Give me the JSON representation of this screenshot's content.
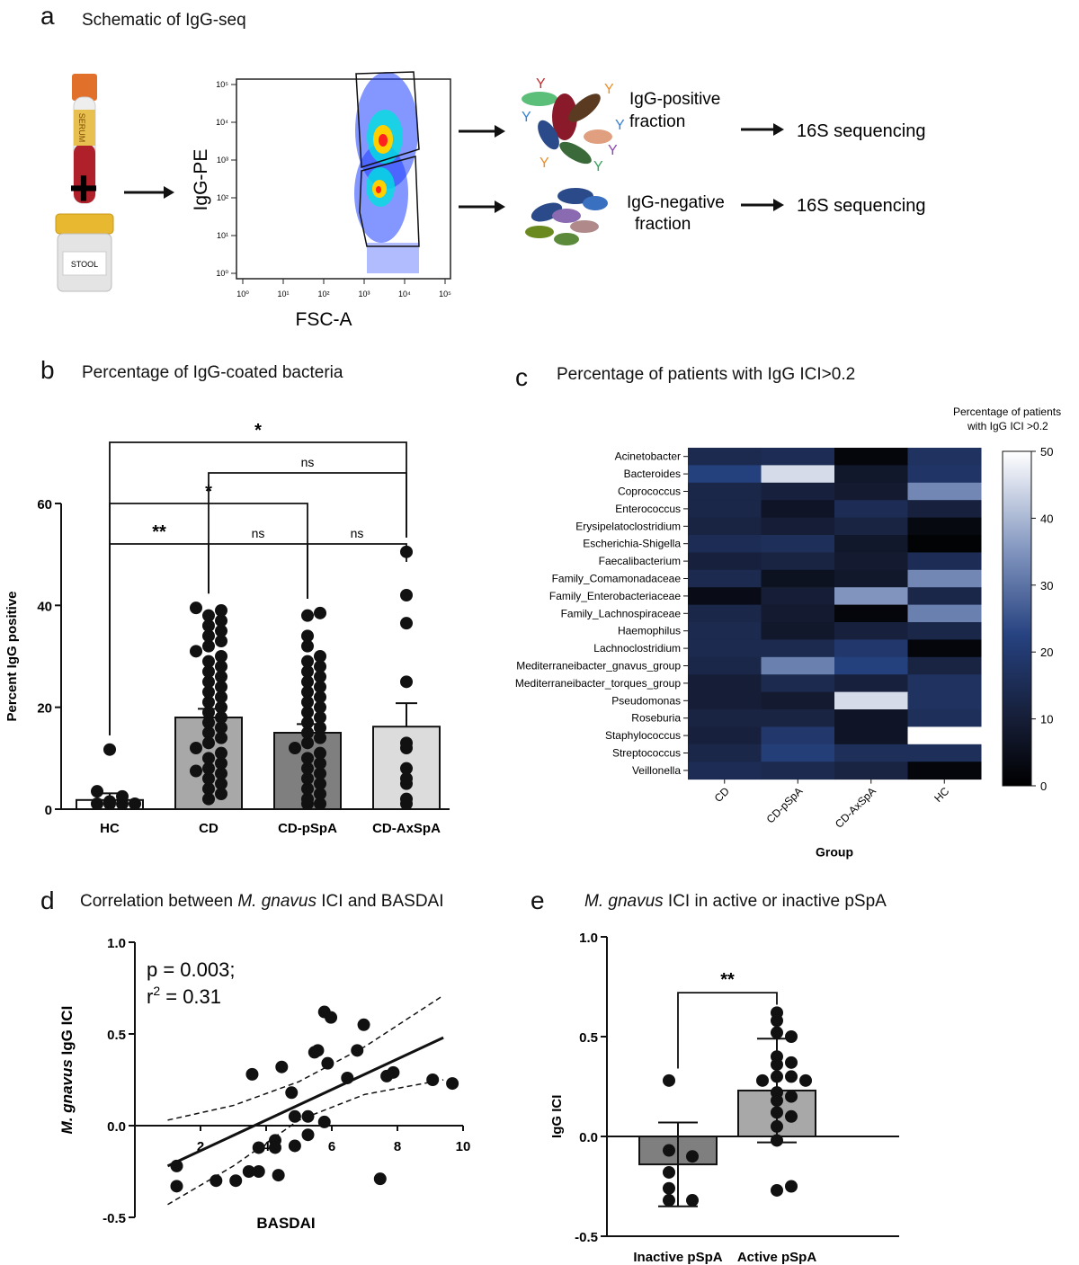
{
  "panels": {
    "a": {
      "letter": "a",
      "title": "Schematic of IgG-seq"
    },
    "b": {
      "letter": "b",
      "title": "Percentage of IgG-coated bacteria"
    },
    "c": {
      "letter": "c",
      "title": "Percentage of patients with IgG ICI>0.2"
    },
    "d": {
      "letter": "d",
      "title_pre": "Correlation between ",
      "title_it": "M. gnavus",
      "title_post": " ICI and BASDAI"
    },
    "e": {
      "letter": "e",
      "title_it": "M. gnavus",
      "title_post": " ICI in active or inactive pSpA"
    }
  },
  "schematic": {
    "serum_label": "SERUM",
    "stool_label": "STOOL",
    "plus": "+",
    "flow_ylabel": "IgG-PE",
    "flow_xlabel": "FSC-A",
    "x_ticks": [
      "10⁰",
      "10¹",
      "10²",
      "10³",
      "10⁴",
      "10⁵"
    ],
    "y_ticks": [
      "10⁰",
      "10¹",
      "10²",
      "10³",
      "10⁴",
      "10⁵"
    ],
    "pos_fraction": [
      "IgG-positive",
      "fraction"
    ],
    "neg_fraction": [
      "IgG-negative",
      "fraction"
    ],
    "sequencing": "16S sequencing",
    "colors": {
      "serum_cap": "#e0702a",
      "serum_body": "#b0202a",
      "stool_lid": "#e8b830",
      "antibody": "#e89030"
    }
  },
  "chart_data": [
    {
      "panel": "b",
      "type": "bar",
      "categories": [
        "HC",
        "CD",
        "CD-pSpA",
        "CD-AxSpA"
      ],
      "values": [
        1.8,
        18.0,
        15.0,
        16.2
      ],
      "sem": [
        1.3,
        1.7,
        1.7,
        4.6
      ],
      "bar_colors": [
        "#ffffff",
        "#a8a8a8",
        "#7f7f7f",
        "#dcdcdc"
      ],
      "ylabel": "Percent IgG positive",
      "ylim": [
        0,
        60
      ],
      "yticks": [
        0,
        20,
        40,
        60
      ],
      "points": [
        [
          0.3,
          0.5,
          0.8,
          1.0,
          1.5,
          2.5,
          3.5,
          11.7
        ],
        [
          2,
          3,
          4,
          5,
          6,
          7,
          7.5,
          8,
          9,
          10,
          11,
          12,
          13,
          14,
          15,
          16,
          17,
          18,
          19,
          20,
          21,
          22,
          23,
          24,
          25,
          26,
          27,
          28,
          29,
          30,
          31,
          32,
          33,
          34,
          35,
          36,
          37,
          38,
          39,
          39.5
        ],
        [
          0.5,
          1,
          2,
          3,
          4,
          5,
          6,
          7,
          8,
          9,
          10,
          11,
          12,
          13,
          14,
          15,
          16,
          17,
          18,
          19,
          20,
          21,
          22,
          23,
          24,
          25,
          26,
          27,
          28,
          29,
          30,
          32,
          34,
          38,
          38.5
        ],
        [
          1,
          2,
          5,
          6,
          8,
          12,
          13,
          25,
          36.5,
          42,
          50.5
        ]
      ],
      "significance": [
        {
          "from": "HC",
          "to": "CD",
          "label": "**"
        },
        {
          "from": "CD",
          "to": "CD-pSpA",
          "label": "ns"
        },
        {
          "from": "CD-pSpA",
          "to": "CD-AxSpA",
          "label": "ns"
        },
        {
          "from": "HC",
          "to": "CD-pSpA",
          "label": "*"
        },
        {
          "from": "CD",
          "to": "CD-AxSpA",
          "label": "ns"
        },
        {
          "from": "HC",
          "to": "CD-AxSpA",
          "label": "*"
        }
      ]
    },
    {
      "panel": "c",
      "type": "heatmap",
      "rows": [
        "Acinetobacter",
        "Bacteroides",
        "Coprococcus",
        "Enterococcus",
        "Erysipelatoclostridium",
        "Escherichia-Shigella",
        "Faecalibacterium",
        "Family_Comamonadaceae",
        "Family_Enterobacteriaceae",
        "Family_Lachnospiraceae",
        "Haemophilus",
        "Lachnoclostridium",
        "Mediterraneibacter_gnavus_group",
        "Mediterraneibacter_torques_group",
        "Pseudomonas",
        "Roseburia",
        "Staphylococcus",
        "Streptococcus",
        "Veillonella"
      ],
      "columns": [
        "CD",
        "CD-pSpA",
        "CD-AxSpA",
        "HC"
      ],
      "values": [
        [
          14,
          15,
          2,
          17
        ],
        [
          22,
          45,
          8,
          18
        ],
        [
          13,
          11,
          9,
          33
        ],
        [
          13,
          7,
          15,
          11
        ],
        [
          12,
          10,
          12,
          3
        ],
        [
          15,
          16,
          8,
          1
        ],
        [
          11,
          12,
          9,
          15
        ],
        [
          14,
          6,
          8,
          33
        ],
        [
          4,
          10,
          35,
          13
        ],
        [
          13,
          9,
          2,
          32
        ],
        [
          14,
          8,
          11,
          13
        ],
        [
          14,
          14,
          19,
          2
        ],
        [
          13,
          32,
          22,
          12
        ],
        [
          10,
          14,
          11,
          17
        ],
        [
          10,
          9,
          45,
          17
        ],
        [
          12,
          12,
          7,
          16
        ],
        [
          11,
          19,
          7,
          50
        ],
        [
          13,
          21,
          16,
          16
        ],
        [
          15,
          14,
          12,
          2
        ]
      ],
      "xlabel": "Group",
      "colorbar_title": [
        "Percentage of patients",
        "with IgG ICI >0.2"
      ],
      "vmin": 0,
      "vmax": 50,
      "colorbar_ticks": [
        0,
        10,
        20,
        30,
        40,
        50
      ]
    },
    {
      "panel": "d",
      "type": "scatter",
      "x": [
        1.0,
        1.0,
        2.2,
        2.8,
        3.2,
        3.3,
        3.5,
        3.5,
        4.0,
        4.0,
        4.1,
        4.2,
        4.5,
        4.6,
        4.6,
        5.0,
        5.0,
        5.2,
        5.3,
        5.5,
        5.5,
        5.6,
        5.7,
        6.2,
        6.5,
        6.7,
        7.2,
        7.4,
        7.6,
        8.8,
        9.4
      ],
      "y": [
        -0.22,
        -0.33,
        -0.3,
        -0.3,
        -0.25,
        0.28,
        -0.12,
        -0.25,
        -0.08,
        -0.12,
        -0.27,
        0.32,
        0.18,
        0.05,
        -0.11,
        0.05,
        -0.05,
        0.4,
        0.41,
        0.02,
        0.62,
        0.34,
        0.59,
        0.26,
        0.41,
        0.55,
        -0.29,
        0.27,
        0.29,
        0.25,
        0.23
      ],
      "fit_line": {
        "x": [
          1.0,
          9.4
        ],
        "y": [
          -0.22,
          0.48
        ]
      },
      "ci_upper": {
        "x": [
          1.0,
          3.0,
          5.0,
          7.0,
          9.4
        ],
        "y": [
          0.03,
          0.11,
          0.24,
          0.43,
          0.71
        ]
      },
      "ci_lower": {
        "x": [
          1.0,
          3.0,
          5.0,
          7.0,
          9.4
        ],
        "y": [
          -0.43,
          -0.22,
          0.03,
          0.17,
          0.25
        ]
      },
      "annotation": [
        "p = 0.003;",
        "r",
        "2",
        " = 0.31"
      ],
      "xlabel": "BASDAI",
      "ylabel_it": "M. gnavus",
      "ylabel_post": " IgG ICI",
      "xlim": [
        0,
        10
      ],
      "ylim": [
        -0.5,
        1.0
      ],
      "xticks": [
        2,
        4,
        6,
        8,
        10
      ],
      "yticks": [
        -0.5,
        0.0,
        0.5,
        1.0
      ],
      "ytick_labels": [
        "-0.5",
        "0.0",
        "0.5",
        "1.0"
      ]
    },
    {
      "panel": "e",
      "type": "bar",
      "categories": [
        "Inactive pSpA",
        "Active pSpA"
      ],
      "values": [
        -0.14,
        0.23
      ],
      "sd": [
        0.21,
        0.26
      ],
      "bar_colors": [
        "#7f7f7f",
        "#a8a8a8"
      ],
      "ylabel": "IgG ICI",
      "ylim": [
        -0.5,
        1.0
      ],
      "yticks": [
        -0.5,
        0.0,
        0.5,
        1.0
      ],
      "ytick_labels": [
        "-0.5",
        "0.0",
        "0.5",
        "1.0"
      ],
      "points": [
        [
          0.28,
          -0.07,
          -0.1,
          -0.18,
          -0.26,
          -0.32,
          -0.32
        ],
        [
          0.62,
          0.58,
          0.52,
          0.5,
          0.4,
          0.37,
          0.36,
          0.3,
          0.3,
          0.28,
          0.28,
          0.22,
          0.2,
          0.18,
          0.12,
          0.1,
          0.05,
          -0.02,
          -0.27,
          -0.25
        ]
      ],
      "significance": [
        {
          "from": "Inactive pSpA",
          "to": "Active pSpA",
          "label": "**"
        }
      ]
    }
  ]
}
